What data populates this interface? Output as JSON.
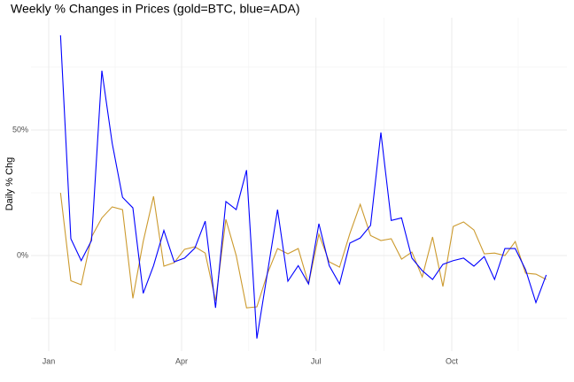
{
  "chart_data": {
    "type": "line",
    "title": "Weekly % Changes in Prices (gold=BTC, blue=ADA)",
    "y_label": "Daily % Chg",
    "x": [
      8,
      15,
      22,
      29,
      36,
      43,
      50,
      57,
      64,
      71,
      78,
      85,
      92,
      99,
      106,
      113,
      120,
      127,
      134,
      141,
      148,
      155,
      162,
      169,
      176,
      183,
      190,
      197,
      204,
      211,
      218,
      225,
      232,
      239,
      246,
      253,
      260,
      267,
      274,
      281,
      288,
      295,
      302,
      309,
      316,
      323,
      330,
      337
    ],
    "series": [
      {
        "color": "#cc9a2e",
        "values": [
          25,
          -10,
          -11.6,
          7.4,
          15,
          19.4,
          18.3,
          -17,
          5.6,
          23.6,
          -4.2,
          -2.8,
          2.5,
          3.5,
          1,
          -18,
          14.4,
          0,
          -20.8,
          -20.4,
          -7.4,
          2.8,
          0.7,
          2.8,
          -11.3,
          8.5,
          -2.5,
          -4.6,
          8.8,
          20.4,
          8,
          6,
          6.7,
          -1.4,
          1.4,
          -8.5,
          7.4,
          -12.3,
          11.6,
          13.4,
          10.2,
          0.7,
          1,
          0,
          5.6,
          -7,
          -7.4,
          -9.5
        ]
      },
      {
        "color": "#0000ff",
        "values": [
          87.7,
          6.7,
          -2,
          6,
          73.6,
          44.7,
          23.2,
          19,
          -15,
          -4,
          10,
          -2.5,
          -1,
          3,
          13.7,
          -20.8,
          21.5,
          18.3,
          34,
          -33,
          -7.4,
          18.3,
          -10.2,
          -4,
          -11.3,
          12.7,
          -4,
          -11.3,
          5,
          7,
          12,
          49,
          14,
          15,
          -1,
          -6,
          -9.5,
          -3.5,
          -2,
          -1,
          -4.2,
          -0.4,
          -9.5,
          2.8,
          2.8,
          -5.6,
          -18.7,
          -7.7
        ]
      }
    ],
    "xlim": [
      -12,
      351
    ],
    "xticks": [
      {
        "value": 0,
        "label": "Jan"
      },
      {
        "value": 90,
        "label": "Apr"
      },
      {
        "value": 181,
        "label": "Jul"
      },
      {
        "value": 273,
        "label": "Oct"
      }
    ],
    "minor_xticks": [
      45,
      135.5,
      227,
      318
    ],
    "ylim": [
      -38,
      94.7
    ],
    "yticks": [
      {
        "value": 0,
        "label": "0%"
      },
      {
        "value": 50,
        "label": "50%"
      }
    ],
    "minor_yticks": [
      -25,
      25,
      75
    ],
    "grid": true
  }
}
